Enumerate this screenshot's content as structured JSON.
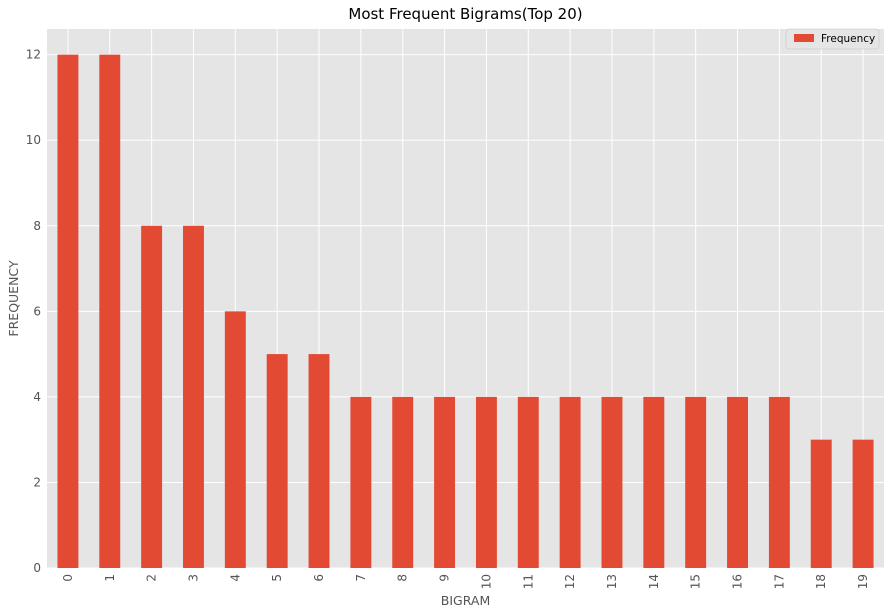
{
  "chart_data": {
    "type": "bar",
    "title": "Most Frequent Bigrams(Top 20)",
    "xlabel": "BIGRAM",
    "ylabel": "FREQUENCY",
    "categories": [
      "0",
      "1",
      "2",
      "3",
      "4",
      "5",
      "6",
      "7",
      "8",
      "9",
      "10",
      "11",
      "12",
      "13",
      "14",
      "15",
      "16",
      "17",
      "18",
      "19"
    ],
    "series": [
      {
        "name": "Frequency",
        "values": [
          12,
          12,
          8,
          8,
          6,
          5,
          5,
          4,
          4,
          4,
          4,
          4,
          4,
          4,
          4,
          4,
          4,
          4,
          3,
          3
        ]
      }
    ],
    "ylim": [
      0,
      12.6
    ],
    "yticks": [
      0,
      2,
      4,
      6,
      8,
      10,
      12
    ],
    "grid": true,
    "legend_position": "top-right",
    "colors": {
      "bar": "#e24a33",
      "plot_background": "#e5e5e5",
      "grid": "#ffffff"
    }
  }
}
